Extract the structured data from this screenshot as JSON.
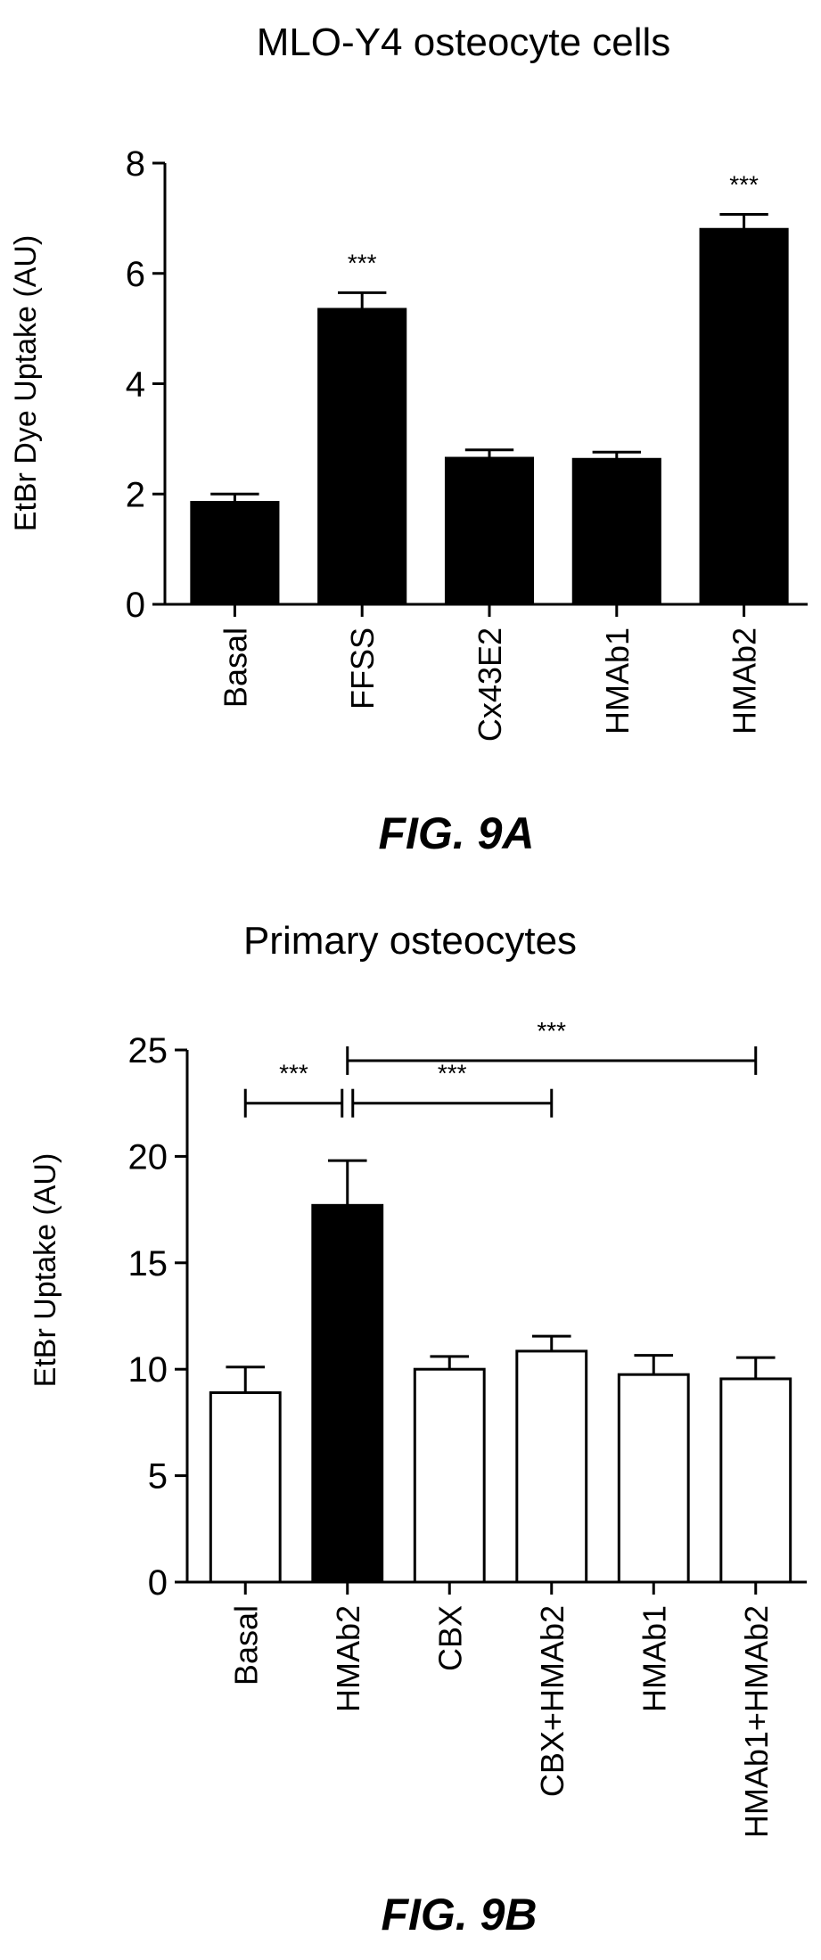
{
  "chart_data": [
    {
      "type": "bar",
      "title": "MLO-Y4 osteocyte cells",
      "ylabel": "EtBr Dye Uptake (AU)",
      "ylim": [
        0,
        8
      ],
      "yticks": [
        "0",
        "2",
        "4",
        "6",
        "8"
      ],
      "categories": [
        "Basal",
        "FFSS",
        "Cx43E2",
        "HMAb1",
        "HMAb2"
      ],
      "values": [
        1.85,
        5.35,
        2.65,
        2.63,
        6.8
      ],
      "errors": [
        0.15,
        0.3,
        0.15,
        0.13,
        0.27
      ],
      "bar_fill": [
        "filled",
        "filled",
        "filled",
        "filled",
        "filled"
      ],
      "annotations": [
        {
          "category": "FFSS",
          "text": "***"
        },
        {
          "category": "HMAb2",
          "text": "***"
        }
      ],
      "figure_label": "FIG. 9A"
    },
    {
      "type": "bar",
      "title": "Primary osteocytes",
      "ylabel": "EtBr Uptake (AU)",
      "ylim": [
        0,
        25
      ],
      "yticks": [
        "0",
        "5",
        "10",
        "15",
        "20",
        "25"
      ],
      "categories": [
        "Basal",
        "HMAb2",
        "CBX",
        "CBX+HMAb2",
        "HMAb1",
        "HMAb1+HMAb2"
      ],
      "values": [
        8.9,
        17.7,
        10.0,
        10.85,
        9.75,
        9.55
      ],
      "errors": [
        1.2,
        2.1,
        0.6,
        0.7,
        0.9,
        1.0
      ],
      "bar_fill": [
        "open",
        "filled",
        "open",
        "open",
        "open",
        "open"
      ],
      "comparisons": [
        {
          "from": "Basal",
          "to": "HMAb2",
          "level": 22.5,
          "text": "***"
        },
        {
          "from": "HMAb2",
          "to": "CBX+HMAb2",
          "level": 22.5,
          "text": "***"
        },
        {
          "from": "HMAb2",
          "to": "HMAb1+HMAb2",
          "level": 24.5,
          "text": "***"
        }
      ],
      "figure_label": "FIG. 9B"
    }
  ]
}
